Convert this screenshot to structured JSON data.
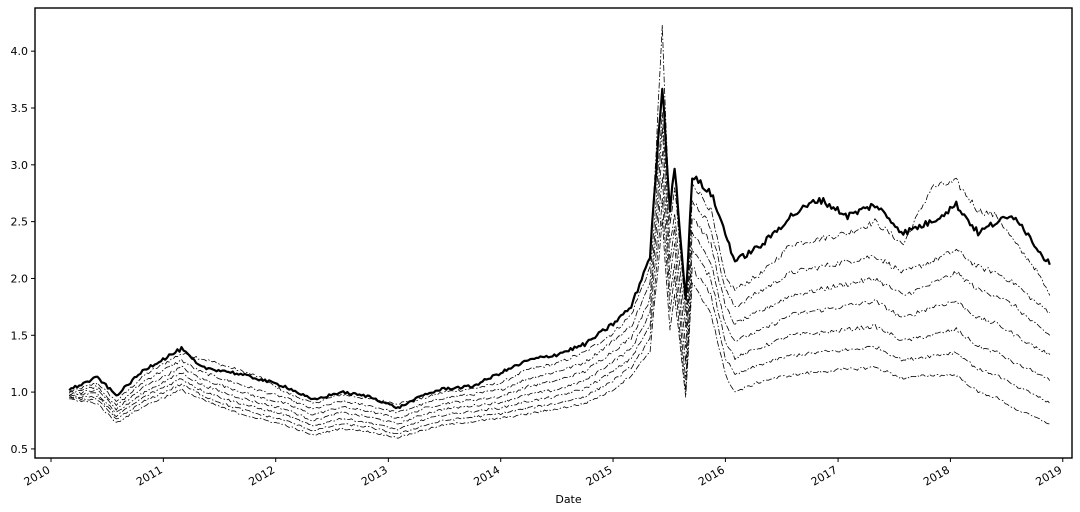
{
  "chart_data": {
    "type": "line",
    "title": "",
    "xlabel": "Date",
    "ylabel": "",
    "xlim": [
      "2009-11-10",
      "2019-01-31"
    ],
    "ylim": [
      0.42,
      4.38
    ],
    "x_ticks": [
      "2010",
      "2011",
      "2012",
      "2013",
      "2014",
      "2015",
      "2016",
      "2017",
      "2018",
      "2019"
    ],
    "y_ticks": [
      "0.5",
      "1.0",
      "1.5",
      "2.0",
      "2.5",
      "3.0",
      "3.5",
      "4.0"
    ],
    "grid": false,
    "legend": false,
    "style": {
      "line_color": "#000000",
      "main_series_linestyle": "solid-thick",
      "other_series_linestyle": "dash-dot-thin"
    },
    "series": [
      {
        "x": [
          "2010-03-01",
          "2010-06-01",
          "2010-08-01",
          "2010-11-01",
          "2011-03-01",
          "2011-05-01",
          "2011-08-01",
          "2011-11-01",
          "2012-02-01",
          "2012-05-01",
          "2012-08-01",
          "2012-11-01",
          "2013-02-01",
          "2013-05-01",
          "2013-07-01",
          "2013-10-01",
          "2014-01-01",
          "2014-04-01",
          "2014-07-01",
          "2014-10-01",
          "2015-01-01",
          "2015-03-01",
          "2015-05-01",
          "2015-06-10",
          "2015-07-05",
          "2015-07-20",
          "2015-08-25",
          "2015-09-15",
          "2015-11-15",
          "2016-01-01",
          "2016-02-01",
          "2016-05-01",
          "2016-08-01",
          "2016-11-01",
          "2017-02-01",
          "2017-05-01",
          "2017-08-01",
          "2017-11-01",
          "2018-01-20",
          "2018-04-01",
          "2018-06-01",
          "2018-08-01",
          "2018-10-01",
          "2018-11-20"
        ],
        "values": [
          1.02,
          1.13,
          0.97,
          1.2,
          1.38,
          1.22,
          1.18,
          1.12,
          1.05,
          0.93,
          1.0,
          0.96,
          0.86,
          0.98,
          1.03,
          1.05,
          1.17,
          1.28,
          1.33,
          1.42,
          1.6,
          1.75,
          2.2,
          3.7,
          2.6,
          3.0,
          1.8,
          2.9,
          2.75,
          2.4,
          2.15,
          2.3,
          2.55,
          2.7,
          2.55,
          2.65,
          2.4,
          2.5,
          2.65,
          2.4,
          2.5,
          2.55,
          2.3,
          2.12
        ]
      },
      {
        "x": [
          "2010-03-01",
          "2010-06-01",
          "2010-08-01",
          "2010-11-01",
          "2011-03-01",
          "2011-05-01",
          "2011-08-01",
          "2011-11-01",
          "2012-02-01",
          "2012-05-01",
          "2012-08-01",
          "2012-11-01",
          "2013-02-01",
          "2013-05-01",
          "2013-07-01",
          "2013-10-01",
          "2014-01-01",
          "2014-04-01",
          "2014-07-01",
          "2014-10-01",
          "2015-01-01",
          "2015-03-01",
          "2015-05-01",
          "2015-06-10",
          "2015-07-05",
          "2015-07-20",
          "2015-08-25",
          "2015-09-15",
          "2015-11-15",
          "2016-01-01",
          "2016-02-01",
          "2016-05-01",
          "2016-08-01",
          "2016-11-01",
          "2017-02-01",
          "2017-05-01",
          "2017-08-01",
          "2017-11-01",
          "2018-01-20",
          "2018-04-01",
          "2018-06-01",
          "2018-08-01",
          "2018-10-01",
          "2018-11-20"
        ],
        "values": [
          1.0,
          1.08,
          0.92,
          1.15,
          1.34,
          1.3,
          1.22,
          1.14,
          1.0,
          0.9,
          0.98,
          0.94,
          0.9,
          0.95,
          1.0,
          1.03,
          1.08,
          1.2,
          1.25,
          1.35,
          1.52,
          1.68,
          2.1,
          4.2,
          2.45,
          2.8,
          1.7,
          2.85,
          2.6,
          2.0,
          1.9,
          2.05,
          2.3,
          2.35,
          2.4,
          2.5,
          2.3,
          2.8,
          2.85,
          2.6,
          2.55,
          2.3,
          2.1,
          1.85
        ]
      },
      {
        "x": [
          "2010-03-01",
          "2010-06-01",
          "2010-08-01",
          "2010-11-01",
          "2011-03-01",
          "2011-05-01",
          "2011-08-01",
          "2011-11-01",
          "2012-02-01",
          "2012-05-01",
          "2012-08-01",
          "2012-11-01",
          "2013-02-01",
          "2013-05-01",
          "2013-07-01",
          "2013-10-01",
          "2014-01-01",
          "2014-04-01",
          "2014-07-01",
          "2014-10-01",
          "2015-01-01",
          "2015-03-01",
          "2015-05-01",
          "2015-06-10",
          "2015-07-05",
          "2015-07-20",
          "2015-08-25",
          "2015-09-15",
          "2015-11-15",
          "2016-01-01",
          "2016-02-01",
          "2016-05-01",
          "2016-08-01",
          "2016-11-01",
          "2017-02-01",
          "2017-05-01",
          "2017-08-01",
          "2017-11-01",
          "2018-01-20",
          "2018-04-01",
          "2018-06-01",
          "2018-08-01",
          "2018-10-01",
          "2018-11-20"
        ],
        "values": [
          1.0,
          1.05,
          0.88,
          1.1,
          1.28,
          1.18,
          1.1,
          1.02,
          0.95,
          0.85,
          0.92,
          0.88,
          0.82,
          0.9,
          0.95,
          0.98,
          1.02,
          1.12,
          1.18,
          1.26,
          1.45,
          1.58,
          1.95,
          3.5,
          2.3,
          2.6,
          1.55,
          2.7,
          2.45,
          1.9,
          1.75,
          1.9,
          2.05,
          2.1,
          2.15,
          2.2,
          2.05,
          2.15,
          2.25,
          2.1,
          2.05,
          1.95,
          1.8,
          1.7
        ]
      },
      {
        "x": [
          "2010-03-01",
          "2010-06-01",
          "2010-08-01",
          "2010-11-01",
          "2011-03-01",
          "2011-05-01",
          "2011-08-01",
          "2011-11-01",
          "2012-02-01",
          "2012-05-01",
          "2012-08-01",
          "2012-11-01",
          "2013-02-01",
          "2013-05-01",
          "2013-07-01",
          "2013-10-01",
          "2014-01-01",
          "2014-04-01",
          "2014-07-01",
          "2014-10-01",
          "2015-01-01",
          "2015-03-01",
          "2015-05-01",
          "2015-06-10",
          "2015-07-05",
          "2015-07-20",
          "2015-08-25",
          "2015-09-15",
          "2015-11-15",
          "2016-01-01",
          "2016-02-01",
          "2016-05-01",
          "2016-08-01",
          "2016-11-01",
          "2017-02-01",
          "2017-05-01",
          "2017-08-01",
          "2017-11-01",
          "2018-01-20",
          "2018-04-01",
          "2018-06-01",
          "2018-08-01",
          "2018-10-01",
          "2018-11-20"
        ],
        "values": [
          0.98,
          1.02,
          0.85,
          1.05,
          1.22,
          1.12,
          1.04,
          0.96,
          0.9,
          0.8,
          0.87,
          0.83,
          0.77,
          0.86,
          0.9,
          0.93,
          0.96,
          1.05,
          1.1,
          1.18,
          1.36,
          1.48,
          1.82,
          3.3,
          2.15,
          2.45,
          1.4,
          2.55,
          2.3,
          1.75,
          1.6,
          1.72,
          1.85,
          1.9,
          1.95,
          2.0,
          1.85,
          1.95,
          2.05,
          1.9,
          1.85,
          1.75,
          1.6,
          1.5
        ]
      },
      {
        "x": [
          "2010-03-01",
          "2010-06-01",
          "2010-08-01",
          "2010-11-01",
          "2011-03-01",
          "2011-05-01",
          "2011-08-01",
          "2011-11-01",
          "2012-02-01",
          "2012-05-01",
          "2012-08-01",
          "2012-11-01",
          "2013-02-01",
          "2013-05-01",
          "2013-07-01",
          "2013-10-01",
          "2014-01-01",
          "2014-04-01",
          "2014-07-01",
          "2014-10-01",
          "2015-01-01",
          "2015-03-01",
          "2015-05-01",
          "2015-06-10",
          "2015-07-05",
          "2015-07-20",
          "2015-08-25",
          "2015-09-15",
          "2015-11-15",
          "2016-01-01",
          "2016-02-01",
          "2016-05-01",
          "2016-08-01",
          "2016-11-01",
          "2017-02-01",
          "2017-05-01",
          "2017-08-01",
          "2017-11-01",
          "2018-01-20",
          "2018-04-01",
          "2018-06-01",
          "2018-08-01",
          "2018-10-01",
          "2018-11-20"
        ],
        "values": [
          0.97,
          0.99,
          0.82,
          1.0,
          1.17,
          1.07,
          0.98,
          0.91,
          0.85,
          0.75,
          0.82,
          0.78,
          0.72,
          0.81,
          0.85,
          0.88,
          0.91,
          0.98,
          1.02,
          1.1,
          1.27,
          1.38,
          1.7,
          3.1,
          2.0,
          2.3,
          1.25,
          2.4,
          2.15,
          1.6,
          1.45,
          1.55,
          1.68,
          1.72,
          1.76,
          1.8,
          1.65,
          1.75,
          1.8,
          1.65,
          1.6,
          1.5,
          1.4,
          1.33
        ]
      },
      {
        "x": [
          "2010-03-01",
          "2010-06-01",
          "2010-08-01",
          "2010-11-01",
          "2011-03-01",
          "2011-05-01",
          "2011-08-01",
          "2011-11-01",
          "2012-02-01",
          "2012-05-01",
          "2012-08-01",
          "2012-11-01",
          "2013-02-01",
          "2013-05-01",
          "2013-07-01",
          "2013-10-01",
          "2014-01-01",
          "2014-04-01",
          "2014-07-01",
          "2014-10-01",
          "2015-01-01",
          "2015-03-01",
          "2015-05-01",
          "2015-06-10",
          "2015-07-05",
          "2015-07-20",
          "2015-08-25",
          "2015-09-15",
          "2015-11-15",
          "2016-01-01",
          "2016-02-01",
          "2016-05-01",
          "2016-08-01",
          "2016-11-01",
          "2017-02-01",
          "2017-05-01",
          "2017-08-01",
          "2017-11-01",
          "2018-01-20",
          "2018-04-01",
          "2018-06-01",
          "2018-08-01",
          "2018-10-01",
          "2018-11-20"
        ],
        "values": [
          0.96,
          0.96,
          0.79,
          0.96,
          1.12,
          1.02,
          0.93,
          0.86,
          0.8,
          0.7,
          0.77,
          0.73,
          0.67,
          0.76,
          0.8,
          0.83,
          0.86,
          0.92,
          0.96,
          1.03,
          1.18,
          1.3,
          1.58,
          2.9,
          1.85,
          2.15,
          1.1,
          2.25,
          2.0,
          1.45,
          1.3,
          1.4,
          1.5,
          1.52,
          1.55,
          1.58,
          1.45,
          1.5,
          1.55,
          1.4,
          1.35,
          1.25,
          1.18,
          1.1
        ]
      },
      {
        "x": [
          "2010-03-01",
          "2010-06-01",
          "2010-08-01",
          "2010-11-01",
          "2011-03-01",
          "2011-05-01",
          "2011-08-01",
          "2011-11-01",
          "2012-02-01",
          "2012-05-01",
          "2012-08-01",
          "2012-11-01",
          "2013-02-01",
          "2013-05-01",
          "2013-07-01",
          "2013-10-01",
          "2014-01-01",
          "2014-04-01",
          "2014-07-01",
          "2014-10-01",
          "2015-01-01",
          "2015-03-01",
          "2015-05-01",
          "2015-06-10",
          "2015-07-05",
          "2015-07-20",
          "2015-08-25",
          "2015-09-15",
          "2015-11-15",
          "2016-01-01",
          "2016-02-01",
          "2016-05-01",
          "2016-08-01",
          "2016-11-01",
          "2017-02-01",
          "2017-05-01",
          "2017-08-01",
          "2017-11-01",
          "2018-01-20",
          "2018-04-01",
          "2018-06-01",
          "2018-08-01",
          "2018-10-01",
          "2018-11-20"
        ],
        "values": [
          0.95,
          0.93,
          0.76,
          0.92,
          1.07,
          0.98,
          0.88,
          0.81,
          0.75,
          0.66,
          0.72,
          0.69,
          0.63,
          0.71,
          0.75,
          0.78,
          0.81,
          0.86,
          0.9,
          0.96,
          1.1,
          1.22,
          1.46,
          2.7,
          1.7,
          2.0,
          1.0,
          2.1,
          1.85,
          1.3,
          1.15,
          1.25,
          1.32,
          1.35,
          1.37,
          1.4,
          1.28,
          1.32,
          1.35,
          1.2,
          1.15,
          1.05,
          0.98,
          0.9
        ]
      },
      {
        "x": [
          "2010-03-01",
          "2010-06-01",
          "2010-08-01",
          "2010-11-01",
          "2011-03-01",
          "2011-05-01",
          "2011-08-01",
          "2011-11-01",
          "2012-02-01",
          "2012-05-01",
          "2012-08-01",
          "2012-11-01",
          "2013-02-01",
          "2013-05-01",
          "2013-07-01",
          "2013-10-01",
          "2014-01-01",
          "2014-04-01",
          "2014-07-01",
          "2014-10-01",
          "2015-01-01",
          "2015-03-01",
          "2015-05-01",
          "2015-06-10",
          "2015-07-05",
          "2015-07-20",
          "2015-08-25",
          "2015-09-15",
          "2015-11-15",
          "2016-01-01",
          "2016-02-01",
          "2016-05-01",
          "2016-08-01",
          "2016-11-01",
          "2017-02-01",
          "2017-05-01",
          "2017-08-01",
          "2017-11-01",
          "2018-01-20",
          "2018-04-01",
          "2018-06-01",
          "2018-08-01",
          "2018-10-01",
          "2018-11-20"
        ],
        "values": [
          0.94,
          0.9,
          0.73,
          0.88,
          1.02,
          0.94,
          0.84,
          0.77,
          0.71,
          0.62,
          0.68,
          0.65,
          0.6,
          0.67,
          0.71,
          0.74,
          0.77,
          0.81,
          0.85,
          0.9,
          1.02,
          1.15,
          1.36,
          2.5,
          1.55,
          1.85,
          0.95,
          1.95,
          1.7,
          1.15,
          1.0,
          1.1,
          1.15,
          1.18,
          1.2,
          1.22,
          1.12,
          1.15,
          1.15,
          1.0,
          0.95,
          0.85,
          0.78,
          0.72
        ]
      }
    ]
  }
}
